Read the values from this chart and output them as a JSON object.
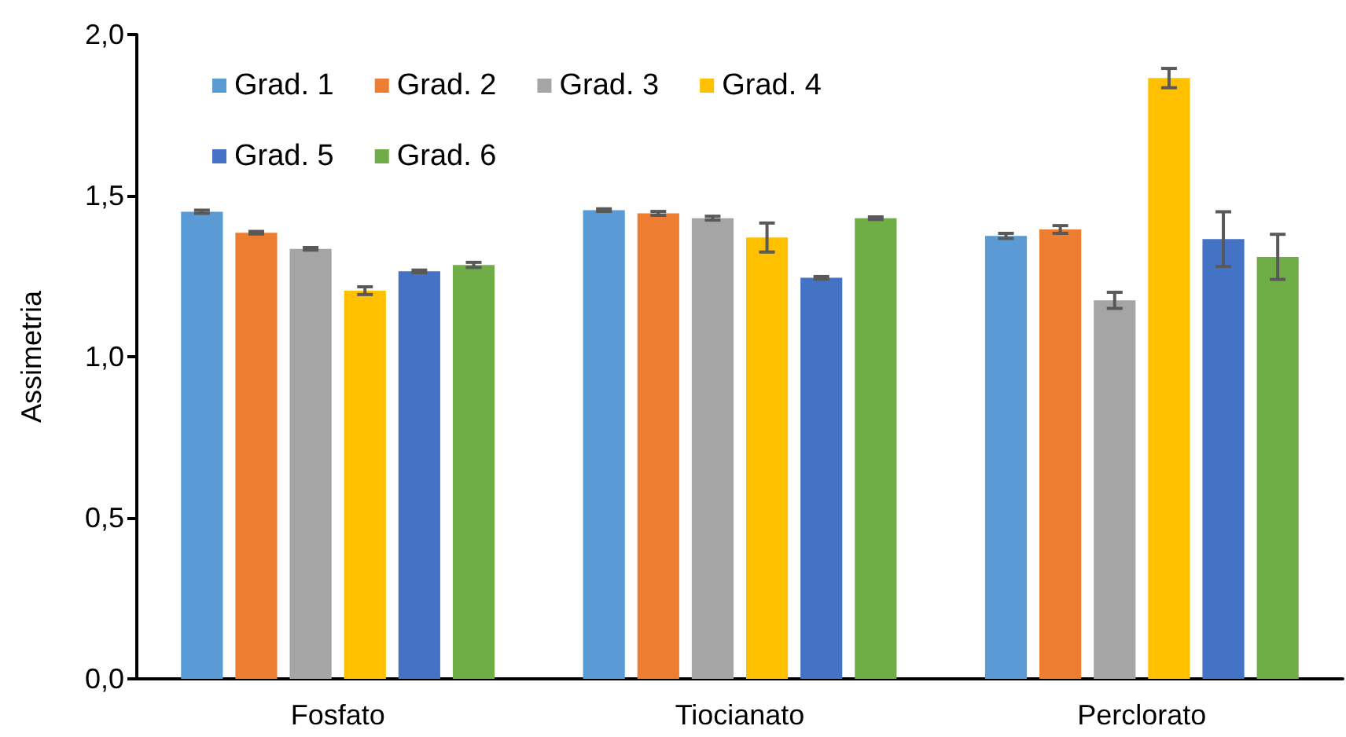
{
  "chart_data": {
    "type": "bar",
    "ylabel": "Assimetria",
    "categories": [
      "Fosfato",
      "Tiocianato",
      "Perclorato"
    ],
    "ylim": [
      0,
      2
    ],
    "yticks": [
      {
        "value": 0,
        "label": "0,0"
      },
      {
        "value": 0.5,
        "label": "0,5"
      },
      {
        "value": 1,
        "label": "1,0"
      },
      {
        "value": 1.5,
        "label": "1,5"
      },
      {
        "value": 2,
        "label": "2,0"
      }
    ],
    "grid": false,
    "legend": "top left",
    "series": [
      {
        "name": "Grad. 1",
        "color": "#5b9bd5",
        "values": [
          1.45,
          1.455,
          1.375
        ],
        "errors": [
          0.005,
          0.004,
          0.008
        ]
      },
      {
        "name": "Grad. 2",
        "color": "#ed7d31",
        "values": [
          1.385,
          1.445,
          1.395
        ],
        "errors": [
          0.004,
          0.006,
          0.012
        ]
      },
      {
        "name": "Grad. 3",
        "color": "#a5a5a5",
        "values": [
          1.335,
          1.43,
          1.175
        ],
        "errors": [
          0.004,
          0.006,
          0.025
        ]
      },
      {
        "name": "Grad. 4",
        "color": "#ffc000",
        "values": [
          1.205,
          1.37,
          1.865
        ],
        "errors": [
          0.012,
          0.045,
          0.03
        ]
      },
      {
        "name": "Grad. 5",
        "color": "#4472c4",
        "values": [
          1.265,
          1.245,
          1.365
        ],
        "errors": [
          0.004,
          0.004,
          0.085
        ]
      },
      {
        "name": "Grad. 6",
        "color": "#70ad47",
        "values": [
          1.285,
          1.43,
          1.31
        ],
        "errors": [
          0.008,
          0.004,
          0.07
        ]
      }
    ]
  }
}
